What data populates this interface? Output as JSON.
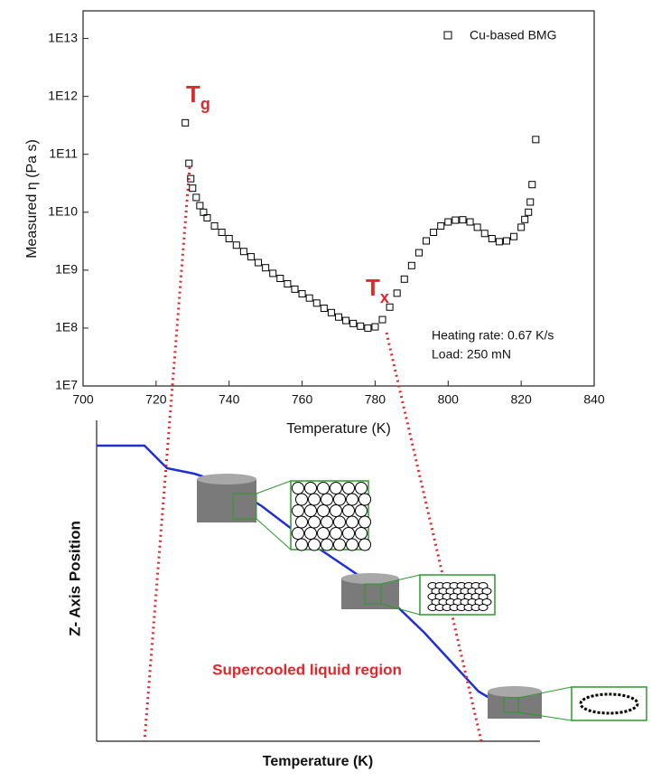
{
  "chart_data": {
    "type": "scatter",
    "xlabel": "Temperature (K)",
    "ylabel": "Measured η (Pa s)",
    "xlim": [
      700,
      840
    ],
    "xticks": [
      700,
      720,
      740,
      760,
      780,
      800,
      820,
      840
    ],
    "ylim": [
      10000000.0,
      30000000000000.0
    ],
    "log_y": true,
    "yticks": [
      {
        "value": 10000000.0,
        "label": "1E7"
      },
      {
        "value": 100000000.0,
        "label": "1E8"
      },
      {
        "value": 1000000000.0,
        "label": "1E9"
      },
      {
        "value": 10000000000.0,
        "label": "1E10"
      },
      {
        "value": 100000000000.0,
        "label": "1E11"
      },
      {
        "value": 1000000000000.0,
        "label": "1E12"
      },
      {
        "value": 10000000000000.0,
        "label": "1E13"
      }
    ],
    "legend": "upper right",
    "series": [
      {
        "name": "Cu-based BMG",
        "color": "#000000",
        "x": [
          728,
          729,
          729.5,
          730,
          731,
          732,
          733,
          734,
          736,
          738,
          740,
          742,
          744,
          746,
          748,
          750,
          752,
          754,
          756,
          758,
          760,
          762,
          764,
          766,
          768,
          770,
          772,
          774,
          776,
          778,
          780,
          782,
          784,
          786,
          788,
          790,
          792,
          794,
          796,
          798,
          800,
          802,
          804,
          806,
          808,
          810,
          812,
          814,
          816,
          818,
          820,
          821,
          822,
          822.5,
          823,
          824
        ],
        "values": [
          350000000000.0,
          70000000000.0,
          38000000000.0,
          26000000000.0,
          18000000000.0,
          13000000000.0,
          10000000000.0,
          8000000000.0,
          5800000000.0,
          4500000000.0,
          3500000000.0,
          2700000000.0,
          2100000000.0,
          1700000000.0,
          1350000000.0,
          1100000000.0,
          880000000.0,
          720000000.0,
          580000000.0,
          470000000.0,
          390000000.0,
          330000000.0,
          270000000.0,
          220000000.0,
          185000000.0,
          155000000.0,
          135000000.0,
          120000000.0,
          108000000.0,
          100000000.0,
          105000000.0,
          140000000.0,
          230000000.0,
          400000000.0,
          700000000.0,
          1200000000.0,
          2000000000.0,
          3200000000.0,
          4500000000.0,
          5800000000.0,
          6800000000.0,
          7300000000.0,
          7400000000.0,
          6800000000.0,
          5500000000.0,
          4300000000.0,
          3500000000.0,
          3100000000.0,
          3200000000.0,
          3800000000.0,
          5500000000.0,
          7500000000.0,
          10000000000.0,
          15000000000.0,
          30000000000.0,
          180000000000.0
        ]
      }
    ],
    "annotations": {
      "tg": [
        "T",
        "g"
      ],
      "tx": [
        "T",
        "x"
      ],
      "conditions": [
        "Heating rate: 0.67 K/s",
        "Load: 250 mN"
      ]
    },
    "annotation_color": "#e3262b"
  },
  "schematic": {
    "ylabel": "Z- Axis Position",
    "xlabel": "Temperature (K)",
    "region": "Supercooled liquid region"
  }
}
